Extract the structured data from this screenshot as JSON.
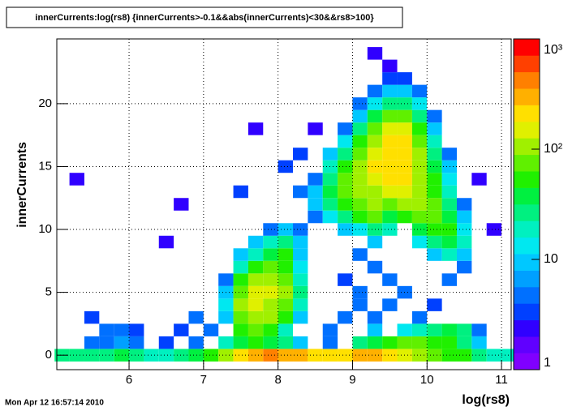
{
  "chart_data": {
    "type": "heatmap",
    "title": "innerCurrents:log(rs8) {innerCurrents>-0.1&&abs(innerCurrents)<30&&rs8>100}",
    "x_label": "log(rs8)",
    "y_label": "innerCurrents",
    "timestamp": "Mon Apr 12 16:57:14 2010",
    "xlim": [
      5.03,
      11.13
    ],
    "xticks": [
      6,
      7,
      8,
      9,
      10,
      11
    ],
    "ylim": [
      -1.15,
      25.15
    ],
    "yticks": [
      0,
      5,
      10,
      15,
      20
    ],
    "zlim": [
      1,
      1000
    ],
    "zlog": true,
    "zticks": [
      1,
      10,
      {
        "value": 100,
        "label": "10²"
      },
      {
        "value": 1000,
        "label": "10³"
      }
    ],
    "grid": true,
    "palette": [
      "#8000ff",
      "#6000ff",
      "#3000ff",
      "#0040ff",
      "#0070ff",
      "#00a0ff",
      "#00c8ff",
      "#00e8f0",
      "#00f0c0",
      "#00f080",
      "#00f040",
      "#20f000",
      "#60f000",
      "#a0f000",
      "#e0f000",
      "#ffe000",
      "#ffb000",
      "#ff8000",
      "#ff4000",
      "#ff0000"
    ],
    "cells": [
      [
        5.1,
        0,
        30
      ],
      [
        5.3,
        0,
        30
      ],
      [
        5.5,
        0,
        30
      ],
      [
        5.7,
        0,
        30
      ],
      [
        5.9,
        0,
        40
      ],
      [
        6.1,
        0,
        30
      ],
      [
        6.3,
        0,
        20
      ],
      [
        6.5,
        0,
        20
      ],
      [
        6.7,
        0,
        30
      ],
      [
        6.9,
        0,
        40
      ],
      [
        7.1,
        0,
        60
      ],
      [
        7.3,
        0,
        100
      ],
      [
        7.5,
        0,
        200
      ],
      [
        7.7,
        0,
        300
      ],
      [
        7.9,
        0,
        400
      ],
      [
        8.1,
        0,
        300
      ],
      [
        8.3,
        0,
        300
      ],
      [
        8.5,
        0,
        200
      ],
      [
        8.7,
        0,
        200
      ],
      [
        8.9,
        0,
        200
      ],
      [
        9.1,
        0,
        300
      ],
      [
        9.3,
        0,
        300
      ],
      [
        9.5,
        0,
        200
      ],
      [
        9.7,
        0,
        150
      ],
      [
        9.9,
        0,
        100
      ],
      [
        10.1,
        0,
        80
      ],
      [
        10.3,
        0,
        60
      ],
      [
        10.5,
        0,
        50
      ],
      [
        10.7,
        0,
        30
      ],
      [
        10.9,
        0,
        20
      ],
      [
        11.1,
        0,
        20
      ],
      [
        5.5,
        1,
        5
      ],
      [
        5.7,
        1,
        4
      ],
      [
        5.9,
        1,
        6
      ],
      [
        6.1,
        1,
        4
      ],
      [
        6.5,
        1,
        3
      ],
      [
        6.9,
        1,
        4
      ],
      [
        7.3,
        1,
        20
      ],
      [
        7.5,
        1,
        40
      ],
      [
        7.7,
        1,
        60
      ],
      [
        7.9,
        1,
        40
      ],
      [
        8.1,
        1,
        30
      ],
      [
        8.3,
        1,
        10
      ],
      [
        8.7,
        1,
        5
      ],
      [
        9.1,
        1,
        30
      ],
      [
        9.3,
        1,
        40
      ],
      [
        9.5,
        1,
        60
      ],
      [
        9.7,
        1,
        80
      ],
      [
        9.9,
        1,
        80
      ],
      [
        10.1,
        1,
        60
      ],
      [
        10.3,
        1,
        50
      ],
      [
        10.5,
        1,
        30
      ],
      [
        10.7,
        1,
        10
      ],
      [
        5.7,
        2,
        5
      ],
      [
        5.9,
        2,
        4
      ],
      [
        6.1,
        2,
        3
      ],
      [
        6.7,
        2,
        3
      ],
      [
        7.1,
        2,
        5
      ],
      [
        7.5,
        2,
        60
      ],
      [
        7.7,
        2,
        80
      ],
      [
        7.9,
        2,
        60
      ],
      [
        8.1,
        2,
        20
      ],
      [
        8.7,
        2,
        5
      ],
      [
        9.3,
        2,
        10
      ],
      [
        9.7,
        2,
        15
      ],
      [
        9.9,
        2,
        20
      ],
      [
        10.1,
        2,
        30
      ],
      [
        10.3,
        2,
        40
      ],
      [
        10.5,
        2,
        30
      ],
      [
        10.7,
        2,
        5
      ],
      [
        5.5,
        3,
        3
      ],
      [
        6.9,
        3,
        4
      ],
      [
        7.3,
        3,
        10
      ],
      [
        7.5,
        3,
        80
      ],
      [
        7.7,
        3,
        120
      ],
      [
        7.9,
        3,
        100
      ],
      [
        8.1,
        3,
        60
      ],
      [
        8.3,
        3,
        10
      ],
      [
        8.9,
        3,
        5
      ],
      [
        9.3,
        3,
        5
      ],
      [
        9.9,
        3,
        5
      ],
      [
        7.3,
        4,
        15
      ],
      [
        7.5,
        4,
        100
      ],
      [
        7.7,
        4,
        150
      ],
      [
        7.9,
        4,
        120
      ],
      [
        8.1,
        4,
        80
      ],
      [
        8.3,
        4,
        20
      ],
      [
        9.1,
        4,
        4
      ],
      [
        9.5,
        4,
        4
      ],
      [
        10.1,
        4,
        3
      ],
      [
        7.3,
        5,
        10
      ],
      [
        7.5,
        5,
        80
      ],
      [
        7.7,
        5,
        150
      ],
      [
        7.9,
        5,
        150
      ],
      [
        8.1,
        5,
        100
      ],
      [
        8.3,
        5,
        30
      ],
      [
        9.1,
        5,
        5
      ],
      [
        9.7,
        5,
        4
      ],
      [
        7.3,
        6,
        5
      ],
      [
        7.5,
        6,
        50
      ],
      [
        7.7,
        6,
        100
      ],
      [
        7.9,
        6,
        120
      ],
      [
        8.1,
        6,
        80
      ],
      [
        8.3,
        6,
        20
      ],
      [
        8.9,
        6,
        3
      ],
      [
        9.5,
        6,
        5
      ],
      [
        10.3,
        6,
        4
      ],
      [
        7.5,
        7,
        20
      ],
      [
        7.7,
        7,
        50
      ],
      [
        7.9,
        7,
        80
      ],
      [
        8.1,
        7,
        60
      ],
      [
        8.3,
        7,
        15
      ],
      [
        9.3,
        7,
        4
      ],
      [
        10.5,
        7,
        5
      ],
      [
        7.5,
        8,
        8
      ],
      [
        7.7,
        8,
        20
      ],
      [
        7.9,
        8,
        40
      ],
      [
        8.1,
        8,
        50
      ],
      [
        8.3,
        8,
        10
      ],
      [
        9.1,
        8,
        5
      ],
      [
        10.1,
        8,
        10
      ],
      [
        10.3,
        8,
        20
      ],
      [
        10.5,
        8,
        10
      ],
      [
        7.7,
        9,
        8
      ],
      [
        7.9,
        9,
        20
      ],
      [
        8.1,
        9,
        30
      ],
      [
        8.3,
        9,
        10
      ],
      [
        9.3,
        9,
        10
      ],
      [
        9.9,
        9,
        15
      ],
      [
        10.1,
        9,
        30
      ],
      [
        10.3,
        9,
        40
      ],
      [
        10.5,
        9,
        20
      ],
      [
        7.9,
        10,
        5
      ],
      [
        8.1,
        10,
        10
      ],
      [
        8.3,
        10,
        5
      ],
      [
        8.9,
        10,
        8
      ],
      [
        9.1,
        10,
        15
      ],
      [
        9.3,
        10,
        30
      ],
      [
        9.5,
        10,
        20
      ],
      [
        9.9,
        10,
        40
      ],
      [
        10.1,
        10,
        60
      ],
      [
        10.3,
        10,
        50
      ],
      [
        10.5,
        10,
        15
      ],
      [
        8.5,
        11,
        5
      ],
      [
        8.7,
        11,
        15
      ],
      [
        8.9,
        11,
        30
      ],
      [
        9.1,
        11,
        50
      ],
      [
        9.3,
        11,
        70
      ],
      [
        9.5,
        11,
        40
      ],
      [
        9.7,
        11,
        50
      ],
      [
        9.9,
        11,
        80
      ],
      [
        10.1,
        11,
        80
      ],
      [
        10.3,
        11,
        40
      ],
      [
        10.5,
        11,
        10
      ],
      [
        8.5,
        12,
        10
      ],
      [
        8.7,
        12,
        30
      ],
      [
        8.9,
        12,
        60
      ],
      [
        9.1,
        12,
        80
      ],
      [
        9.3,
        12,
        100
      ],
      [
        9.5,
        12,
        80
      ],
      [
        9.7,
        12,
        100
      ],
      [
        9.9,
        12,
        100
      ],
      [
        10.1,
        12,
        70
      ],
      [
        10.3,
        12,
        30
      ],
      [
        10.5,
        12,
        5
      ],
      [
        8.3,
        13,
        5
      ],
      [
        8.5,
        13,
        10
      ],
      [
        8.7,
        13,
        40
      ],
      [
        8.9,
        13,
        80
      ],
      [
        9.1,
        13,
        100
      ],
      [
        9.3,
        13,
        120
      ],
      [
        9.5,
        13,
        150
      ],
      [
        9.7,
        13,
        150
      ],
      [
        9.9,
        13,
        100
      ],
      [
        10.1,
        13,
        50
      ],
      [
        10.3,
        13,
        20
      ],
      [
        8.5,
        14,
        5
      ],
      [
        8.7,
        14,
        30
      ],
      [
        8.9,
        14,
        70
      ],
      [
        9.1,
        14,
        120
      ],
      [
        9.3,
        14,
        150
      ],
      [
        9.5,
        14,
        180
      ],
      [
        9.7,
        14,
        180
      ],
      [
        9.9,
        14,
        120
      ],
      [
        10.1,
        14,
        50
      ],
      [
        10.3,
        14,
        15
      ],
      [
        8.7,
        15,
        20
      ],
      [
        8.9,
        15,
        50
      ],
      [
        9.1,
        15,
        100
      ],
      [
        9.3,
        15,
        180
      ],
      [
        9.5,
        15,
        200
      ],
      [
        9.7,
        15,
        200
      ],
      [
        9.9,
        15,
        120
      ],
      [
        10.1,
        15,
        40
      ],
      [
        10.3,
        15,
        8
      ],
      [
        8.7,
        16,
        10
      ],
      [
        8.9,
        16,
        30
      ],
      [
        9.1,
        16,
        80
      ],
      [
        9.3,
        16,
        150
      ],
      [
        9.5,
        16,
        220
      ],
      [
        9.7,
        16,
        220
      ],
      [
        9.9,
        16,
        100
      ],
      [
        10.1,
        16,
        30
      ],
      [
        10.3,
        16,
        5
      ],
      [
        8.9,
        17,
        15
      ],
      [
        9.1,
        17,
        50
      ],
      [
        9.3,
        17,
        120
      ],
      [
        9.5,
        17,
        200
      ],
      [
        9.7,
        17,
        200
      ],
      [
        9.9,
        17,
        80
      ],
      [
        10.1,
        17,
        20
      ],
      [
        8.9,
        18,
        5
      ],
      [
        9.1,
        18,
        30
      ],
      [
        9.3,
        18,
        80
      ],
      [
        9.5,
        18,
        150
      ],
      [
        9.7,
        18,
        150
      ],
      [
        9.9,
        18,
        50
      ],
      [
        10.1,
        18,
        10
      ],
      [
        9.1,
        19,
        10
      ],
      [
        9.3,
        19,
        40
      ],
      [
        9.5,
        19,
        80
      ],
      [
        9.7,
        19,
        80
      ],
      [
        9.9,
        19,
        30
      ],
      [
        10.1,
        19,
        5
      ],
      [
        9.1,
        20,
        5
      ],
      [
        9.3,
        20,
        15
      ],
      [
        9.5,
        20,
        30
      ],
      [
        9.7,
        20,
        30
      ],
      [
        9.9,
        20,
        15
      ],
      [
        9.3,
        21,
        5
      ],
      [
        9.5,
        21,
        10
      ],
      [
        9.7,
        21,
        10
      ],
      [
        9.9,
        21,
        5
      ],
      [
        9.5,
        22,
        3
      ],
      [
        9.7,
        22,
        3
      ],
      [
        9.5,
        23,
        2
      ],
      [
        5.3,
        14,
        2
      ],
      [
        6.5,
        9,
        2
      ],
      [
        6.7,
        12,
        2
      ],
      [
        7.7,
        18,
        2
      ],
      [
        8.5,
        18,
        2
      ],
      [
        8.1,
        15,
        3
      ],
      [
        7.5,
        13,
        3
      ],
      [
        8.3,
        16,
        3
      ],
      [
        9.3,
        24,
        2
      ],
      [
        10.9,
        10,
        2
      ],
      [
        10.7,
        14,
        2
      ]
    ]
  }
}
